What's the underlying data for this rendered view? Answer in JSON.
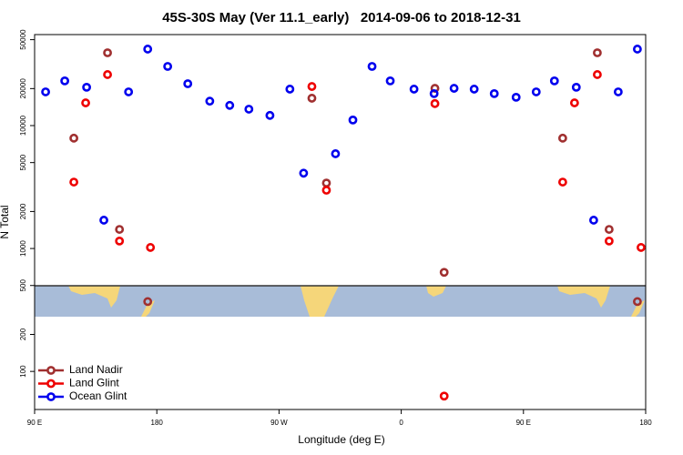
{
  "chart_data": {
    "type": "scatter",
    "title": "45S-30S May (Ver 11.1_early)   2014-09-06 to 2018-12-31",
    "x_label": "Longitude (deg E)",
    "y_label": "N Total",
    "log_y": true,
    "xlim": [
      90,
      540
    ],
    "ylim": [
      49,
      55000
    ],
    "xticks": [
      {
        "value": 90,
        "label": "90 E"
      },
      {
        "value": 180,
        "label": "180"
      },
      {
        "value": 270,
        "label": "90 W"
      },
      {
        "value": 360,
        "label": "0"
      },
      {
        "value": 450,
        "label": "90 E"
      },
      {
        "value": 540,
        "label": "180"
      }
    ],
    "yticks": [
      100,
      200,
      500,
      1000,
      2000,
      5000,
      10000,
      20000,
      50000
    ],
    "legend": "bottom-left",
    "series": [
      {
        "name": "Land Nadir",
        "color": "#a03030",
        "x": [
          118.9,
          143.7,
          152.5,
          173.3,
          294.2,
          304.9,
          384.8,
          391.6,
          478.9,
          504.4,
          513.1,
          533.9
        ],
        "values": [
          7900,
          39100,
          1430,
          370,
          16700,
          3410,
          20100,
          640,
          7900,
          39100,
          1430,
          370
        ]
      },
      {
        "name": "Land Glint",
        "color": "#ee0000",
        "x": [
          118.9,
          127.6,
          143.7,
          152.5,
          175.3,
          294.2,
          304.9,
          384.8,
          391.6,
          478.9,
          487.6,
          504.4,
          513.1,
          536.6
        ],
        "values": [
          3470,
          15300,
          26000,
          1150,
          1020,
          20800,
          2980,
          15100,
          63,
          3470,
          15300,
          26000,
          1150,
          1020
        ]
      },
      {
        "name": "Ocean Glint",
        "color": "#0000ee",
        "x": [
          98.1,
          112.2,
          128.3,
          141,
          159.2,
          173.3,
          188,
          202.8,
          219,
          233.7,
          247.8,
          263.3,
          278,
          288.1,
          311.6,
          324.4,
          338.5,
          351.9,
          369.4,
          384.2,
          398.9,
          413.7,
          428.5,
          444.6,
          459.4,
          472.8,
          488.9,
          501.7,
          519.8,
          533.9
        ],
        "values": [
          18800,
          23100,
          20500,
          1700,
          18800,
          41900,
          30300,
          21900,
          15800,
          14600,
          13600,
          12100,
          19800,
          4100,
          5900,
          11100,
          30300,
          23100,
          19800,
          18200,
          20100,
          19800,
          18200,
          17000,
          18800,
          23100,
          20500,
          1700,
          18800,
          41900
        ]
      }
    ]
  }
}
